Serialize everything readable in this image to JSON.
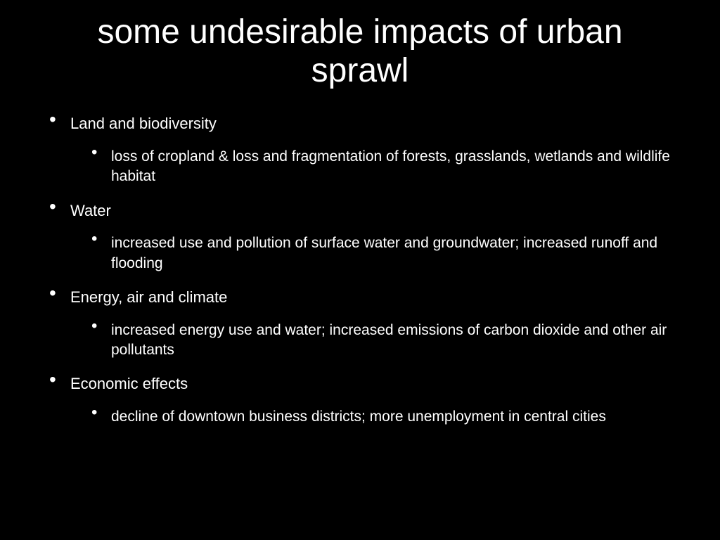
{
  "background_color": "#000000",
  "text_color": "#ffffff",
  "font_family": "Arial",
  "title": "some undesirable impacts of urban sprawl",
  "title_fontsize": 48,
  "body_fontsize_l1": 22,
  "body_fontsize_l2": 21,
  "items": [
    {
      "label": "Land and biodiversity",
      "sub": [
        "loss of cropland &  loss and fragmentation of forests, grasslands, wetlands and wildlife habitat"
      ]
    },
    {
      "label": "Water",
      "sub": [
        "increased use and pollution of surface water and groundwater; increased runoff and flooding"
      ]
    },
    {
      "label": "Energy, air and climate",
      "sub": [
        "increased energy use and water; increased emissions of carbon dioxide and other air pollutants"
      ]
    },
    {
      "label": "Economic effects",
      "sub": [
        "decline of downtown business districts; more unemployment in central cities"
      ]
    }
  ]
}
